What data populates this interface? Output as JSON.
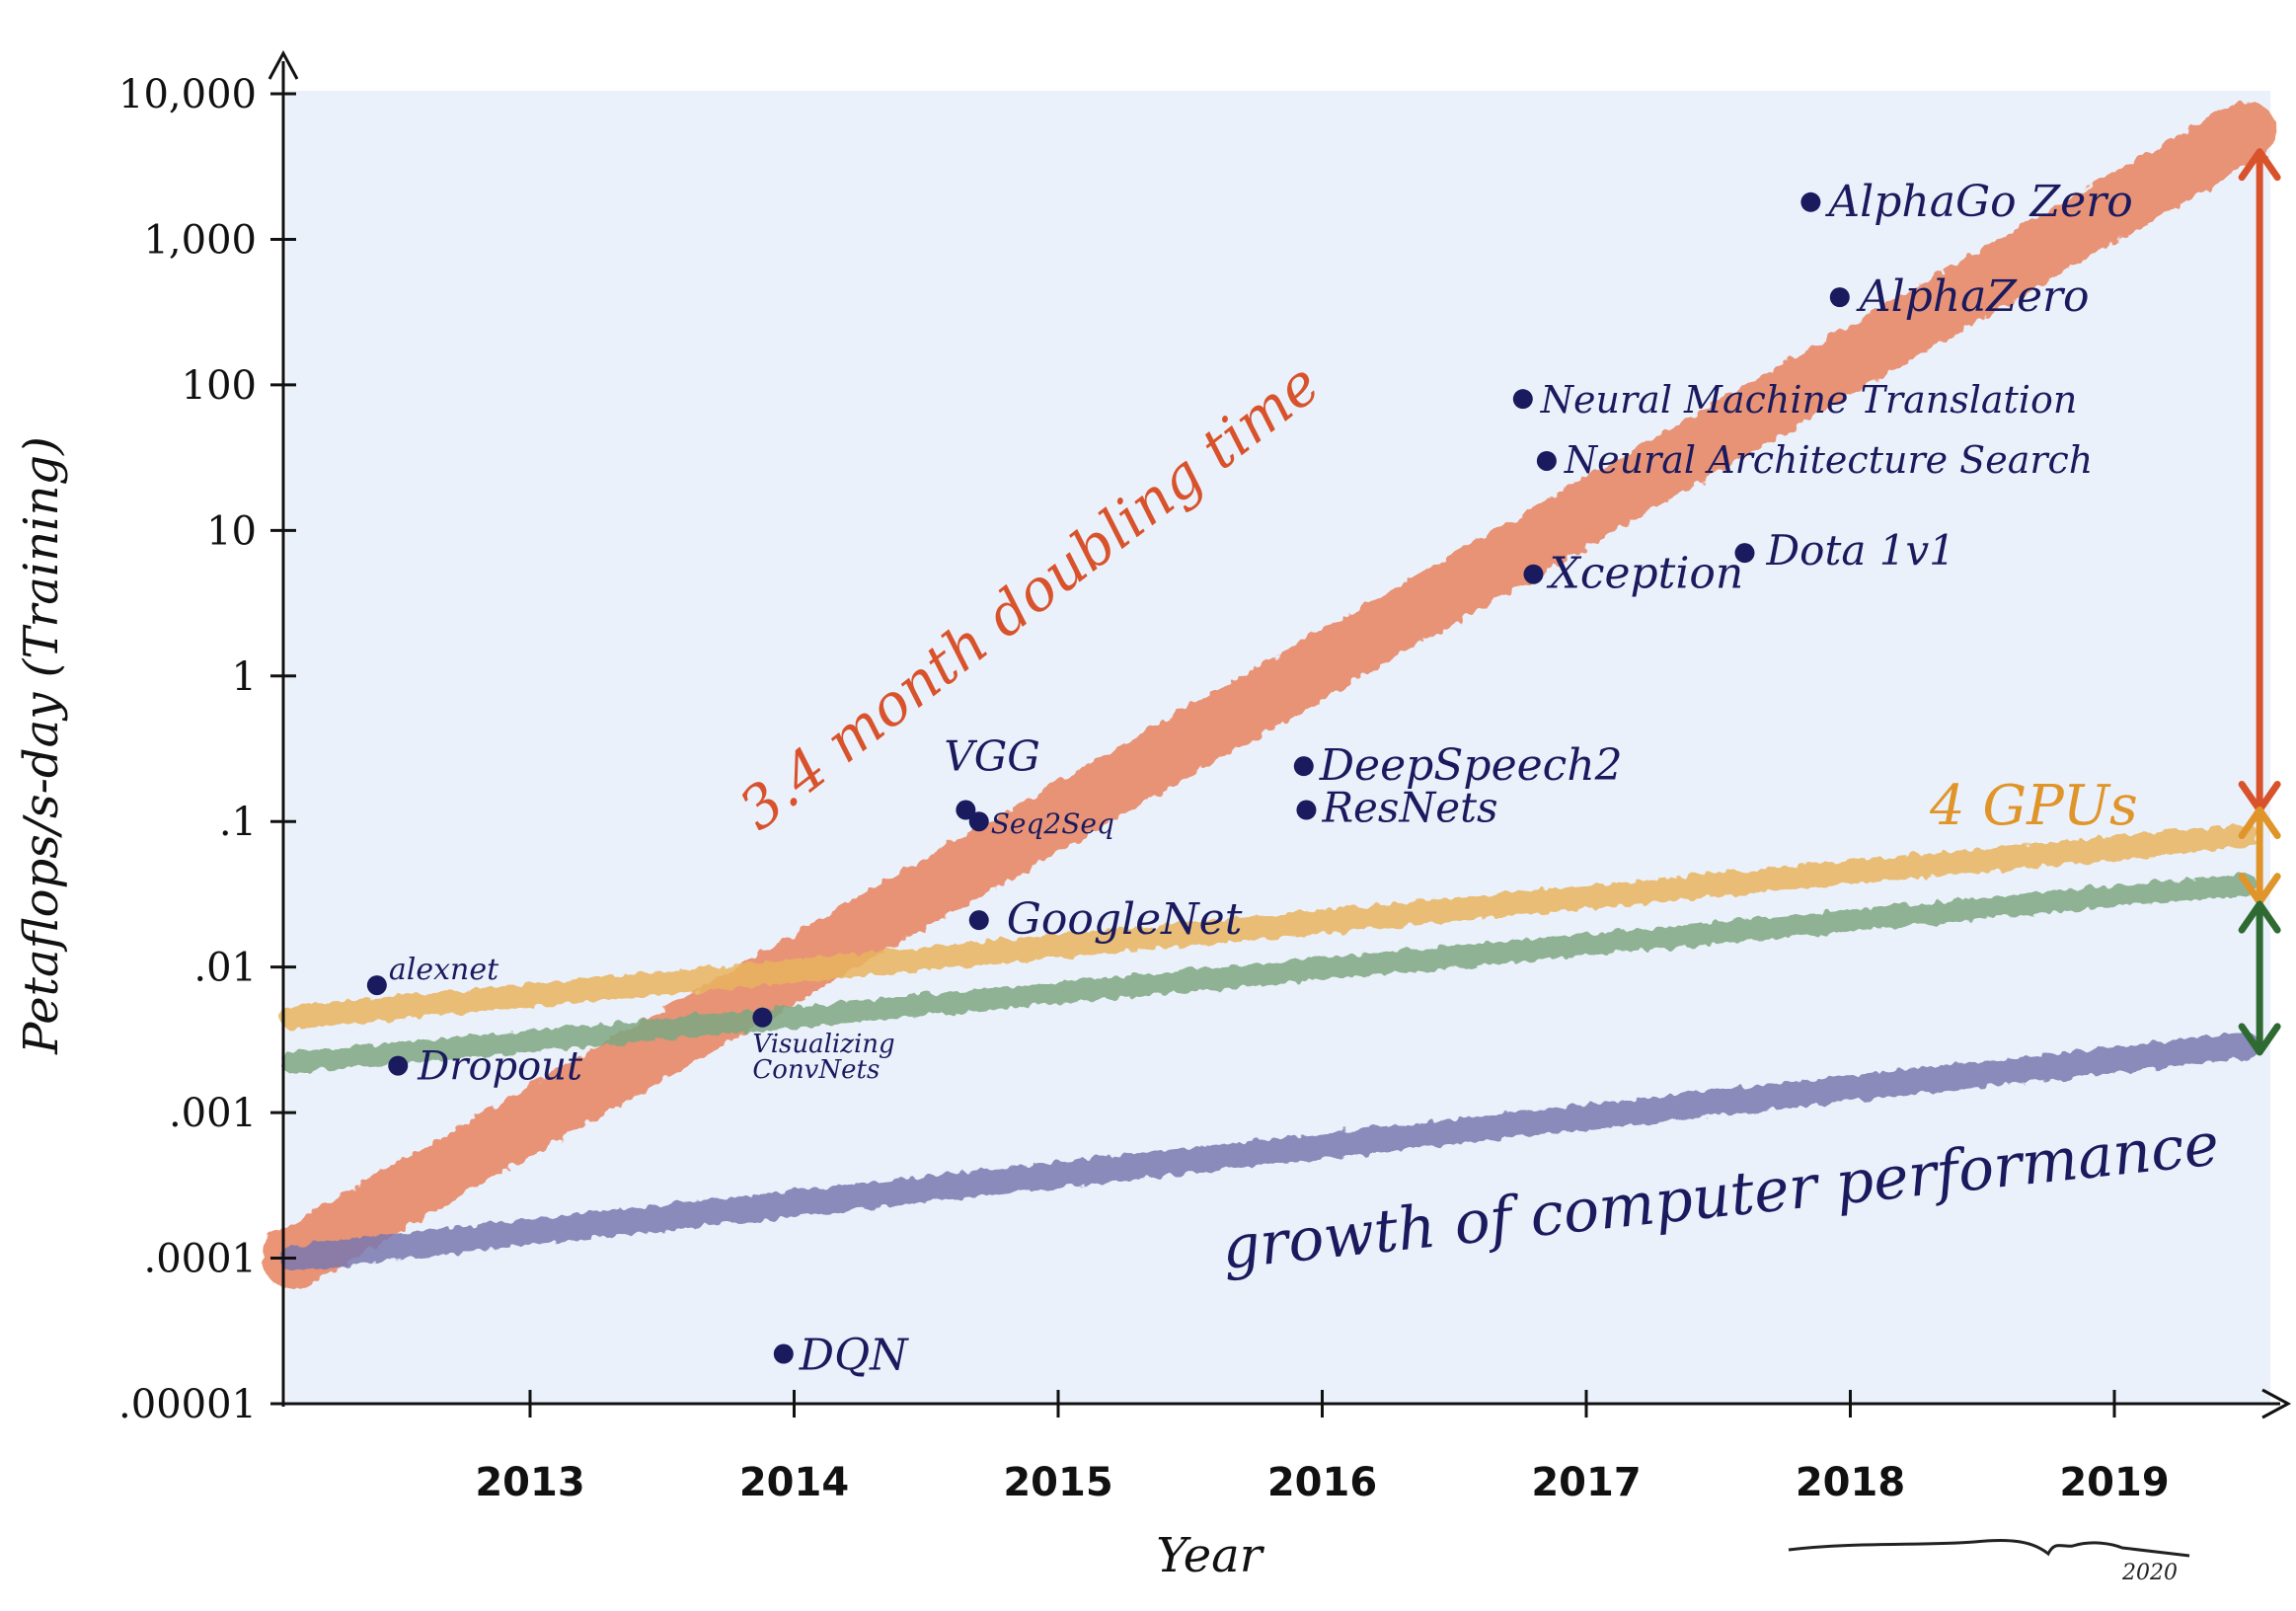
{
  "chart_data": {
    "type": "scatter",
    "xlabel": "Year",
    "ylabel": "Petaflops/s-day (Training)",
    "xlim": [
      2012.1,
      2019.65
    ],
    "ylim": [
      1e-05,
      10000
    ],
    "y_scale": "log",
    "x_ticks": [
      2013,
      2014,
      2015,
      2016,
      2017,
      2018,
      2019
    ],
    "x_tick_labels": [
      "2013",
      "2014",
      "2015",
      "2016",
      "2017",
      "2018",
      "2019"
    ],
    "y_ticks": [
      1e-05,
      0.0001,
      0.001,
      0.01,
      0.1,
      1,
      10,
      100,
      1000,
      10000
    ],
    "y_tick_labels": [
      ".00001",
      ".0001",
      ".001",
      ".01",
      ".1",
      "1",
      "10",
      "100",
      "1,000",
      "10,000"
    ],
    "grid": false,
    "points": [
      {
        "label": "alexnet",
        "x": 2012.42,
        "y": 0.0075
      },
      {
        "label": "Dropout",
        "x": 2012.5,
        "y": 0.0021
      },
      {
        "label": "Visualizing ConvNets",
        "x": 2013.88,
        "y": 0.0045
      },
      {
        "label": "DQN",
        "x": 2013.96,
        "y": 2.2e-05
      },
      {
        "label": "VGG",
        "x": 2014.65,
        "y": 0.12
      },
      {
        "label": "Seq2Seq",
        "x": 2014.7,
        "y": 0.1
      },
      {
        "label": "GoogleNet",
        "x": 2014.7,
        "y": 0.021
      },
      {
        "label": "DeepSpeech2",
        "x": 2015.93,
        "y": 0.24
      },
      {
        "label": "ResNets",
        "x": 2015.94,
        "y": 0.12
      },
      {
        "label": "Neural Machine Translation",
        "x": 2016.76,
        "y": 80
      },
      {
        "label": "Neural Architecture Search",
        "x": 2016.85,
        "y": 30
      },
      {
        "label": "Xception",
        "x": 2016.8,
        "y": 5
      },
      {
        "label": "Dota 1v1",
        "x": 2017.6,
        "y": 7
      },
      {
        "label": "AlphaGo Zero",
        "x": 2017.85,
        "y": 1800
      },
      {
        "label": "AlphaZero",
        "x": 2017.96,
        "y": 400
      }
    ],
    "series": [
      {
        "name": "3.4 month doubling time",
        "color": "#e8835f",
        "x": [
          2012.1,
          2019.5
        ],
        "y": [
          0.0001,
          5500
        ]
      },
      {
        "name": "4 GPUs",
        "color": "#e9b45e",
        "x": [
          2012.1,
          2019.5
        ],
        "y": [
          0.0045,
          0.08
        ]
      },
      {
        "name": "",
        "color": "#7ea882",
        "x": [
          2012.1,
          2019.5
        ],
        "y": [
          0.0022,
          0.037
        ]
      },
      {
        "name": "growth of computer performance",
        "color": "#7a79b0",
        "x": [
          2012.1,
          2019.5
        ],
        "y": [
          0.0001,
          0.0029
        ]
      }
    ],
    "arrows": [
      {
        "color": "#d8532c",
        "x": 2019.55,
        "y": [
          0.12,
          4000
        ]
      },
      {
        "color": "#e0952a",
        "x": 2019.55,
        "y": [
          0.028,
          0.12
        ]
      },
      {
        "color": "#2e6a32",
        "x": 2019.55,
        "y": [
          0.0026,
          0.027
        ]
      }
    ]
  },
  "signature": {
    "year": "2020"
  },
  "colors": {
    "plot_background": "#ebf1fb",
    "point": "#1a1a5e",
    "point_label": "#1a1a5e",
    "doubling_label": "#d8532c",
    "gpu_label": "#e0952a",
    "perf_label": "#1a1a5e"
  }
}
